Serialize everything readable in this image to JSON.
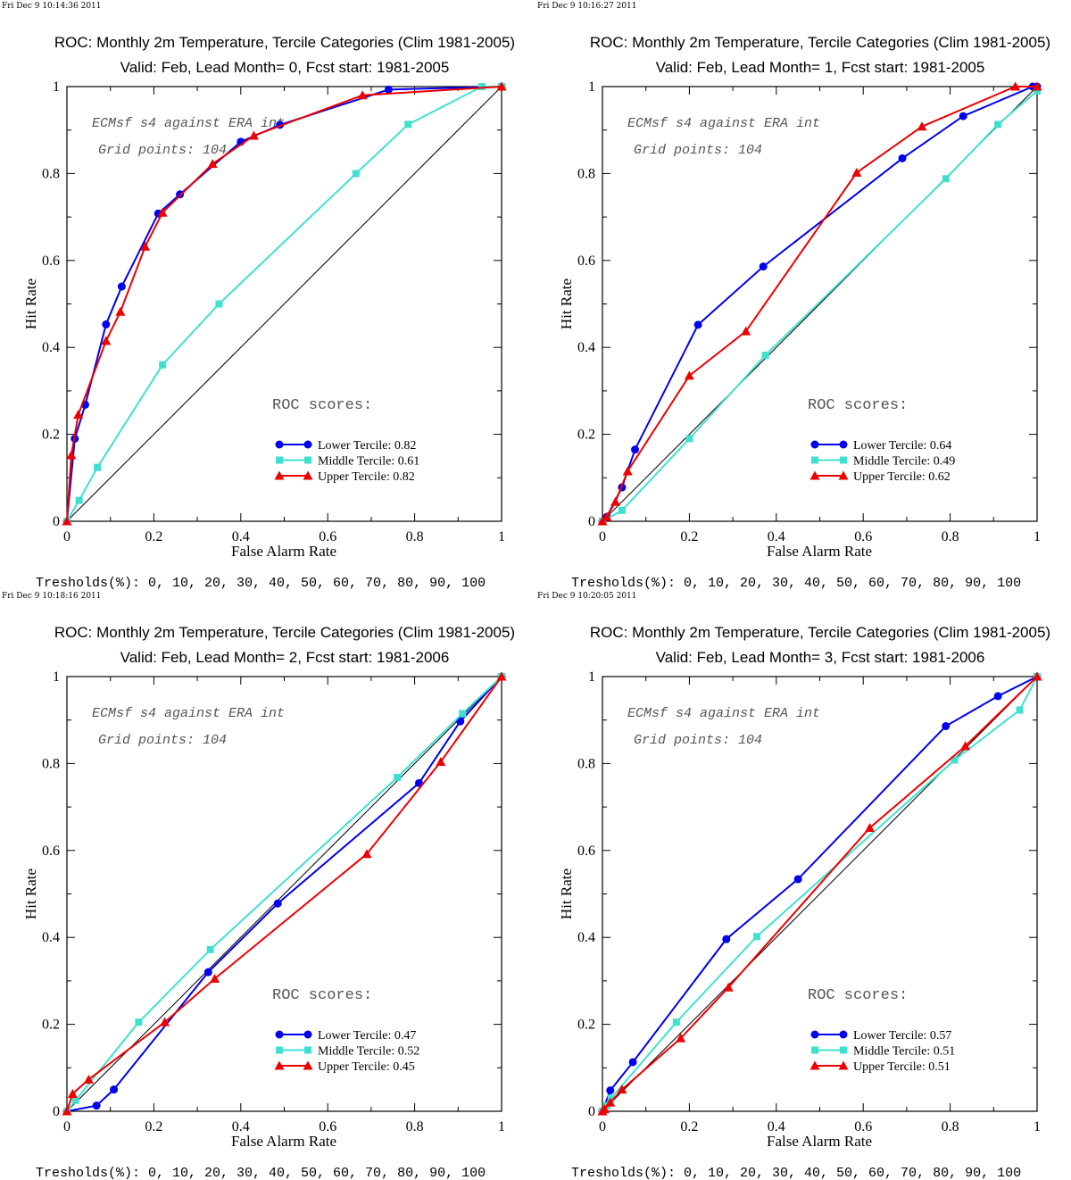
{
  "colors": {
    "lower": "#0000ee",
    "middle": "#40e0d0",
    "upper": "#ee0000",
    "diagonal": "#000000"
  },
  "chart_data": [
    {
      "type": "line",
      "timestamp": "Fri Dec  9 10:14:36 2011",
      "title": "ROC: Monthly 2m Temperature, Tercile Categories (Clim 1981-2005)",
      "subtitle": "Valid: Feb, Lead Month= 0, Fcst start: 1981-2005",
      "xlabel": "False Alarm Rate",
      "ylabel": "Hit Rate",
      "xlim": [
        0,
        1
      ],
      "ylim": [
        0,
        1
      ],
      "x_ticks": [
        "0",
        "0.2",
        "0.4",
        "0.6",
        "0.8",
        "1"
      ],
      "y_ticks": [
        "0",
        "0.2",
        "0.4",
        "0.6",
        "0.8",
        "1"
      ],
      "grid": false,
      "legend_position": "lower-right",
      "annotations": [
        "ECMsf s4 against ERA int",
        "Grid points:  104"
      ],
      "scores_heading": "ROC scores:",
      "thresholds_text": "Tresholds(%): 0, 10, 20, 30, 40, 50, 60, 70, 80, 90, 100",
      "series": [
        {
          "name": "Lower Tercile: 0.82",
          "marker": "circle",
          "points": [
            [
              0,
              0
            ],
            [
              0.018,
              0.19
            ],
            [
              0.042,
              0.268
            ],
            [
              0.09,
              0.453
            ],
            [
              0.126,
              0.54
            ],
            [
              0.21,
              0.708
            ],
            [
              0.26,
              0.752
            ],
            [
              0.4,
              0.873
            ],
            [
              0.49,
              0.912
            ],
            [
              0.74,
              0.993
            ],
            [
              1,
              1
            ]
          ]
        },
        {
          "name": "Middle Tercile: 0.61",
          "marker": "square",
          "points": [
            [
              0,
              0
            ],
            [
              0.028,
              0.048
            ],
            [
              0.07,
              0.124
            ],
            [
              0.22,
              0.36
            ],
            [
              0.35,
              0.5
            ],
            [
              0.665,
              0.8
            ],
            [
              0.785,
              0.913
            ],
            [
              0.955,
              1
            ],
            [
              1,
              1
            ]
          ]
        },
        {
          "name": "Upper Tercile: 0.82",
          "marker": "triangle",
          "points": [
            [
              0,
              0
            ],
            [
              0.01,
              0.152
            ],
            [
              0.026,
              0.245
            ],
            [
              0.09,
              0.415
            ],
            [
              0.123,
              0.482
            ],
            [
              0.18,
              0.632
            ],
            [
              0.22,
              0.71
            ],
            [
              0.335,
              0.822
            ],
            [
              0.43,
              0.887
            ],
            [
              0.68,
              0.98
            ],
            [
              1,
              1
            ]
          ]
        }
      ]
    },
    {
      "type": "line",
      "timestamp": "Fri Dec  9 10:16:27 2011",
      "title": "ROC: Monthly 2m Temperature, Tercile Categories (Clim 1981-2005)",
      "subtitle": "Valid: Feb, Lead Month= 1, Fcst start: 1981-2005",
      "xlabel": "False Alarm Rate",
      "ylabel": "Hit Rate",
      "xlim": [
        0,
        1
      ],
      "ylim": [
        0,
        1
      ],
      "x_ticks": [
        "0",
        "0.2",
        "0.4",
        "0.6",
        "0.8",
        "1"
      ],
      "y_ticks": [
        "0",
        "0.2",
        "0.4",
        "0.6",
        "0.8",
        "1"
      ],
      "grid": false,
      "legend_position": "lower-right",
      "annotations": [
        "ECMsf s4 against ERA int",
        "Grid points:  104"
      ],
      "scores_heading": "ROC scores:",
      "thresholds_text": "Tresholds(%): 0, 10, 20, 30, 40, 50, 60, 70, 80, 90, 100",
      "series": [
        {
          "name": "Lower Tercile: 0.64",
          "marker": "circle",
          "points": [
            [
              0,
              0
            ],
            [
              0.01,
              0.01
            ],
            [
              0.045,
              0.078
            ],
            [
              0.075,
              0.165
            ],
            [
              0.22,
              0.452
            ],
            [
              0.37,
              0.586
            ],
            [
              0.69,
              0.835
            ],
            [
              0.83,
              0.932
            ],
            [
              0.99,
              1
            ],
            [
              1,
              1
            ]
          ]
        },
        {
          "name": "Middle Tercile: 0.49",
          "marker": "square",
          "points": [
            [
              0,
              0
            ],
            [
              0.045,
              0.025
            ],
            [
              0.2,
              0.19
            ],
            [
              0.375,
              0.382
            ],
            [
              0.79,
              0.788
            ],
            [
              0.91,
              0.913
            ],
            [
              1,
              0.99
            ]
          ]
        },
        {
          "name": "Upper Tercile: 0.62",
          "marker": "triangle",
          "points": [
            [
              0,
              0
            ],
            [
              0.01,
              0.01
            ],
            [
              0.03,
              0.045
            ],
            [
              0.058,
              0.115
            ],
            [
              0.2,
              0.335
            ],
            [
              0.33,
              0.437
            ],
            [
              0.585,
              0.802
            ],
            [
              0.735,
              0.908
            ],
            [
              0.95,
              1
            ],
            [
              1,
              1
            ]
          ]
        }
      ]
    },
    {
      "type": "line",
      "timestamp": "Fri Dec  9 10:18:16 2011",
      "title": "ROC: Monthly 2m Temperature, Tercile Categories (Clim 1981-2005)",
      "subtitle": "Valid: Feb, Lead Month= 2, Fcst start: 1981-2006",
      "xlabel": "False Alarm Rate",
      "ylabel": "Hit Rate",
      "xlim": [
        0,
        1
      ],
      "ylim": [
        0,
        1
      ],
      "x_ticks": [
        "0",
        "0.2",
        "0.4",
        "0.6",
        "0.8",
        "1"
      ],
      "y_ticks": [
        "0",
        "0.2",
        "0.4",
        "0.6",
        "0.8",
        "1"
      ],
      "grid": false,
      "legend_position": "lower-right",
      "annotations": [
        "ECMsf s4 against ERA int",
        "Grid points:  104"
      ],
      "scores_heading": "ROC scores:",
      "thresholds_text": "Tresholds(%): 0, 10, 20, 30, 40, 50, 60, 70, 80, 90, 100",
      "series": [
        {
          "name": "Lower Tercile: 0.47",
          "marker": "circle",
          "points": [
            [
              0,
              0
            ],
            [
              0.068,
              0.013
            ],
            [
              0.108,
              0.05
            ],
            [
              0.325,
              0.32
            ],
            [
              0.485,
              0.478
            ],
            [
              0.81,
              0.755
            ],
            [
              0.905,
              0.897
            ],
            [
              1,
              1
            ]
          ]
        },
        {
          "name": "Middle Tercile: 0.52",
          "marker": "square",
          "points": [
            [
              0,
              0
            ],
            [
              0.02,
              0.025
            ],
            [
              0.165,
              0.205
            ],
            [
              0.33,
              0.372
            ],
            [
              0.76,
              0.768
            ],
            [
              0.91,
              0.915
            ],
            [
              1,
              1
            ]
          ]
        },
        {
          "name": "Upper Tercile: 0.45",
          "marker": "triangle",
          "points": [
            [
              0,
              0
            ],
            [
              0.013,
              0.04
            ],
            [
              0.05,
              0.073
            ],
            [
              0.225,
              0.205
            ],
            [
              0.34,
              0.305
            ],
            [
              0.69,
              0.592
            ],
            [
              0.86,
              0.804
            ],
            [
              1,
              1
            ]
          ]
        }
      ]
    },
    {
      "type": "line",
      "timestamp": "Fri Dec  9 10:20:05 2011",
      "title": "ROC: Monthly 2m Temperature, Tercile Categories (Clim 1981-2005)",
      "subtitle": "Valid: Feb, Lead Month= 3, Fcst start: 1981-2006",
      "xlabel": "False Alarm Rate",
      "ylabel": "Hit Rate",
      "xlim": [
        0,
        1
      ],
      "ylim": [
        0,
        1
      ],
      "x_ticks": [
        "0",
        "0.2",
        "0.4",
        "0.6",
        "0.8",
        "1"
      ],
      "y_ticks": [
        "0",
        "0.2",
        "0.4",
        "0.6",
        "0.8",
        "1"
      ],
      "grid": false,
      "legend_position": "lower-right",
      "annotations": [
        "ECMsf s4 against ERA int",
        "Grid points:  104"
      ],
      "scores_heading": "ROC scores:",
      "thresholds_text": "Tresholds(%): 0, 10, 20, 30, 40, 50, 60, 70, 80, 90, 100",
      "series": [
        {
          "name": "Lower Tercile: 0.57",
          "marker": "circle",
          "points": [
            [
              0,
              0
            ],
            [
              0.018,
              0.048
            ],
            [
              0.07,
              0.113
            ],
            [
              0.285,
              0.396
            ],
            [
              0.45,
              0.534
            ],
            [
              0.79,
              0.886
            ],
            [
              0.91,
              0.955
            ],
            [
              1,
              1
            ]
          ]
        },
        {
          "name": "Middle Tercile: 0.51",
          "marker": "square",
          "points": [
            [
              0,
              0
            ],
            [
              0.01,
              0.013
            ],
            [
              0.02,
              0.03
            ],
            [
              0.17,
              0.205
            ],
            [
              0.355,
              0.402
            ],
            [
              0.81,
              0.808
            ],
            [
              0.96,
              0.923
            ],
            [
              1,
              1
            ]
          ]
        },
        {
          "name": "Upper Tercile: 0.51",
          "marker": "triangle",
          "points": [
            [
              0,
              0
            ],
            [
              0.005,
              0.005
            ],
            [
              0.018,
              0.02
            ],
            [
              0.045,
              0.05
            ],
            [
              0.18,
              0.168
            ],
            [
              0.29,
              0.285
            ],
            [
              0.615,
              0.652
            ],
            [
              0.835,
              0.84
            ],
            [
              1,
              1
            ]
          ]
        }
      ]
    }
  ]
}
